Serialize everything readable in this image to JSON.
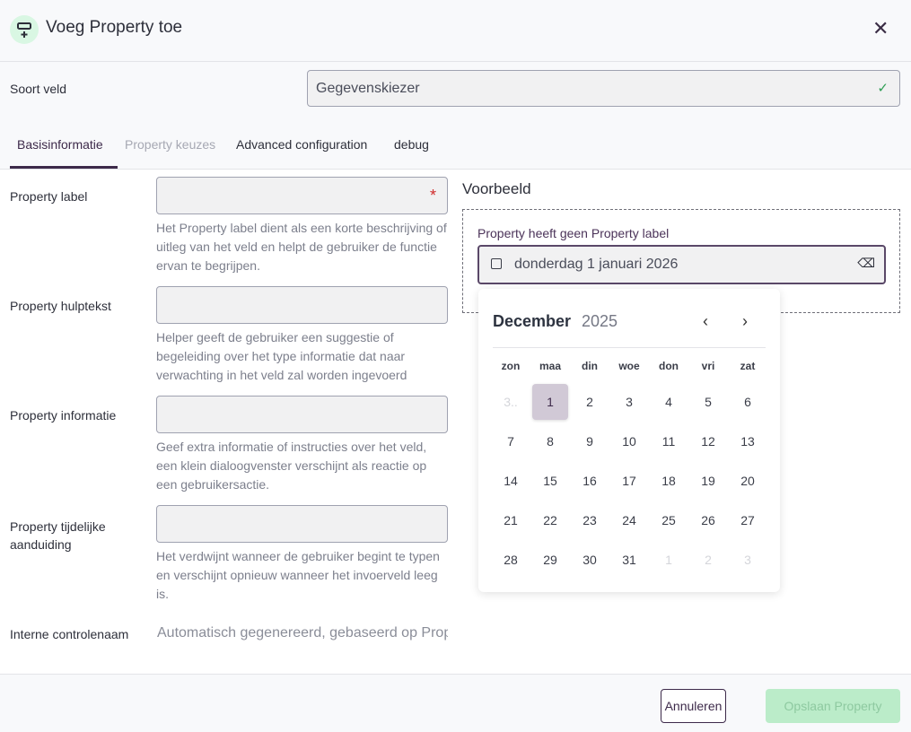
{
  "header": {
    "title": "Voeg Property toe",
    "icon": "add-field-icon",
    "close_icon": "close-icon"
  },
  "field_type": {
    "label": "Soort veld",
    "value": "Gegevenskiezer"
  },
  "tabs": [
    {
      "label": "Basisinformatie",
      "active": true
    },
    {
      "label": "Property keuzes",
      "disabled": true
    },
    {
      "label": "Advanced configuration"
    },
    {
      "label": "debug"
    }
  ],
  "fields": [
    {
      "label": "Property label",
      "value": "",
      "required": "*",
      "help": "Het Property label dient als een korte beschrijving of uitleg van het veld en helpt de gebruiker de functie ervan te begrijpen."
    },
    {
      "label": "Property hulptekst",
      "value": "",
      "help": "Helper geeft de gebruiker een suggestie of begeleiding over het type informatie dat naar verwachting in het veld zal worden ingevoerd"
    },
    {
      "label": "Property informatie",
      "value": "",
      "help": "Geef extra informatie of instructies over het veld, een klein dialoogvenster verschijnt als reactie op een gebruikersactie."
    },
    {
      "label": "Property tijdelijke aanduiding",
      "value": "",
      "help": "Het verdwijnt wanneer de gebruiker begint te typen en verschijnt opnieuw wanneer het invoerveld leeg is."
    }
  ],
  "internal_name": {
    "label": "Interne controlenaam",
    "placeholder": "Automatisch gegenereerd, gebaseerd op Property label"
  },
  "preview": {
    "title": "Voorbeeld",
    "label": "Property heeft geen Property label",
    "date_value": "donderdag 1 januari 2026",
    "calendar": {
      "month": "December",
      "year": "2025",
      "weekdays": [
        "zon",
        "maa",
        "din",
        "woe",
        "don",
        "vri",
        "zat"
      ],
      "days": [
        [
          "3..",
          "1",
          "2",
          "3",
          "4",
          "5",
          "6"
        ],
        [
          "7",
          "8",
          "9",
          "10",
          "11",
          "12",
          "13"
        ],
        [
          "14",
          "15",
          "16",
          "17",
          "18",
          "19",
          "20"
        ],
        [
          "21",
          "22",
          "23",
          "24",
          "25",
          "26",
          "27"
        ],
        [
          "28",
          "29",
          "30",
          "31",
          "1",
          "2",
          "3"
        ]
      ],
      "selected": "1"
    }
  },
  "footer": {
    "cancel": "Annuleren",
    "save": "Opslaan Property"
  },
  "colors": {
    "accent": "#3d2a4a",
    "save_disabled": "#bbecc9",
    "required": "#d02b2b",
    "success": "#2f9e55"
  }
}
